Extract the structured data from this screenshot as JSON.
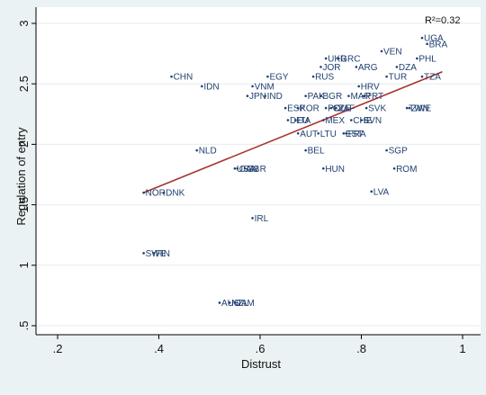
{
  "chart_data": {
    "type": "scatter",
    "xlabel": "Distrust",
    "ylabel": "Regulation of entry",
    "xlim": [
      0.2,
      1.0
    ],
    "ylim": [
      0.5,
      3.0
    ],
    "xticks": [
      ".2",
      ".4",
      ".6",
      ".8",
      "1"
    ],
    "yticks": [
      ".5",
      "1",
      "1.5",
      "2",
      "2.5",
      "3"
    ],
    "grid": "horizontal",
    "annotation": "R²=0.32",
    "colors": {
      "marker": "#1f3f6f",
      "fit_line": "#a83232",
      "grid": "#e4ecee"
    },
    "fit_line": {
      "x": [
        0.37,
        0.96
      ],
      "y": [
        1.6,
        2.6
      ]
    },
    "points": [
      {
        "label": "UGA",
        "x": 0.92,
        "y": 2.88
      },
      {
        "label": "BRA",
        "x": 0.93,
        "y": 2.83
      },
      {
        "label": "VEN",
        "x": 0.84,
        "y": 2.77
      },
      {
        "label": "UKR",
        "x": 0.73,
        "y": 2.71
      },
      {
        "label": "GRC",
        "x": 0.755,
        "y": 2.71
      },
      {
        "label": "PHL",
        "x": 0.91,
        "y": 2.71
      },
      {
        "label": "JOR",
        "x": 0.72,
        "y": 2.64
      },
      {
        "label": "ARG",
        "x": 0.79,
        "y": 2.64
      },
      {
        "label": "DZA",
        "x": 0.87,
        "y": 2.64
      },
      {
        "label": "CHN",
        "x": 0.425,
        "y": 2.56
      },
      {
        "label": "EGY",
        "x": 0.615,
        "y": 2.56
      },
      {
        "label": "RUS",
        "x": 0.705,
        "y": 2.56
      },
      {
        "label": "TUR",
        "x": 0.85,
        "y": 2.56
      },
      {
        "label": "TZA",
        "x": 0.92,
        "y": 2.56
      },
      {
        "label": "IDN",
        "x": 0.485,
        "y": 2.48
      },
      {
        "label": "VNM",
        "x": 0.585,
        "y": 2.48
      },
      {
        "label": "HRV",
        "x": 0.795,
        "y": 2.48
      },
      {
        "label": "JPN",
        "x": 0.575,
        "y": 2.4
      },
      {
        "label": "IND",
        "x": 0.61,
        "y": 2.4
      },
      {
        "label": "PAK",
        "x": 0.69,
        "y": 2.4
      },
      {
        "label": "BGR",
        "x": 0.72,
        "y": 2.4
      },
      {
        "label": "MAR",
        "x": 0.775,
        "y": 2.4
      },
      {
        "label": "PRT",
        "x": 0.805,
        "y": 2.4
      },
      {
        "label": "ESP",
        "x": 0.65,
        "y": 2.3
      },
      {
        "label": "KOR",
        "x": 0.675,
        "y": 2.3
      },
      {
        "label": "POL",
        "x": 0.73,
        "y": 2.3
      },
      {
        "label": "CZE",
        "x": 0.74,
        "y": 2.3
      },
      {
        "label": "ZAF",
        "x": 0.75,
        "y": 2.3
      },
      {
        "label": "SVK",
        "x": 0.81,
        "y": 2.3
      },
      {
        "label": "TWN",
        "x": 0.89,
        "y": 2.3
      },
      {
        "label": "ZWE",
        "x": 0.895,
        "y": 2.3
      },
      {
        "label": "DEU",
        "x": 0.655,
        "y": 2.2
      },
      {
        "label": "ITA",
        "x": 0.67,
        "y": 2.2
      },
      {
        "label": "MEX",
        "x": 0.725,
        "y": 2.2
      },
      {
        "label": "CHE",
        "x": 0.78,
        "y": 2.2
      },
      {
        "label": "SVN",
        "x": 0.8,
        "y": 2.2
      },
      {
        "label": "AUT",
        "x": 0.675,
        "y": 2.09
      },
      {
        "label": "LTU",
        "x": 0.715,
        "y": 2.09
      },
      {
        "label": "EST",
        "x": 0.765,
        "y": 2.09
      },
      {
        "label": "FRA",
        "x": 0.77,
        "y": 2.09
      },
      {
        "label": "NLD",
        "x": 0.475,
        "y": 1.95
      },
      {
        "label": "BEL",
        "x": 0.69,
        "y": 1.95
      },
      {
        "label": "SGP",
        "x": 0.85,
        "y": 1.95
      },
      {
        "label": "USA",
        "x": 0.55,
        "y": 1.8
      },
      {
        "label": "CAN",
        "x": 0.555,
        "y": 1.8
      },
      {
        "label": "GBR",
        "x": 0.57,
        "y": 1.8
      },
      {
        "label": "HUN",
        "x": 0.725,
        "y": 1.8
      },
      {
        "label": "ROM",
        "x": 0.865,
        "y": 1.8
      },
      {
        "label": "NOR",
        "x": 0.37,
        "y": 1.6
      },
      {
        "label": "DNK",
        "x": 0.41,
        "y": 1.6
      },
      {
        "label": "LVA",
        "x": 0.82,
        "y": 1.61
      },
      {
        "label": "IRL",
        "x": 0.585,
        "y": 1.39
      },
      {
        "label": "SWE",
        "x": 0.37,
        "y": 1.1
      },
      {
        "label": "FIN",
        "x": 0.39,
        "y": 1.1
      },
      {
        "label": "AUS",
        "x": 0.52,
        "y": 0.69
      },
      {
        "label": "NZL",
        "x": 0.54,
        "y": 0.69
      },
      {
        "label": "JAM",
        "x": 0.55,
        "y": 0.69
      }
    ]
  }
}
